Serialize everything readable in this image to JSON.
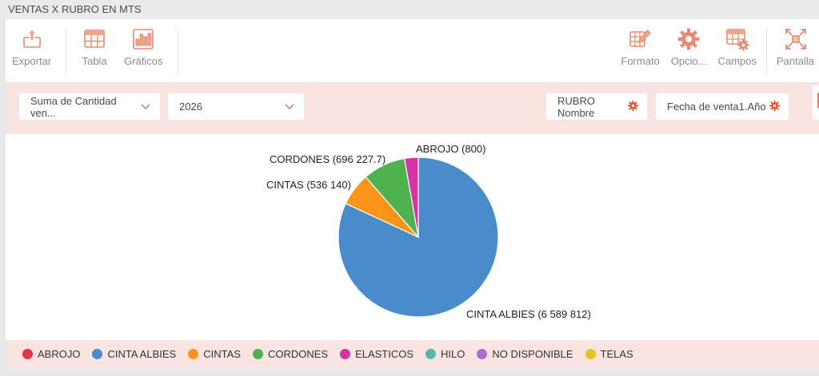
{
  "window": {
    "title": "VENTAS X RUBRO EN MTS"
  },
  "colors": {
    "toolbar_icon": "#e58a70",
    "toolbar_icon_fill": "#eda58d",
    "chip_gear": "#e8512c",
    "bar_pink": "#f9e4e1",
    "titlebar_gray": "#eaeaea"
  },
  "toolbar": {
    "left": [
      {
        "label": "Exportar",
        "icon": "export-icon"
      },
      {
        "label": "Tabla",
        "icon": "table-icon"
      },
      {
        "label": "Gráficos",
        "icon": "bar-chart-icon"
      }
    ],
    "right": [
      {
        "label": "Formato",
        "icon": "format-icon"
      },
      {
        "label": "Opcio...",
        "icon": "gear-icon"
      },
      {
        "label": "Campos",
        "icon": "fields-icon"
      },
      {
        "label": "Pantalla",
        "icon": "fullscreen-icon"
      }
    ]
  },
  "filters": {
    "measure_dropdown": {
      "value": "Suma de Cantidad ven..."
    },
    "year_dropdown": {
      "value": "2026"
    },
    "field_chips": [
      {
        "label": "RUBRO Nombre",
        "icon": "gear-icon"
      },
      {
        "label": "Fecha de venta1.Año",
        "icon": "gear-icon"
      }
    ],
    "mail_button_icon": "envelope-icon"
  },
  "chart_data": {
    "type": "pie",
    "title": "VENTAS X RUBRO EN MTS",
    "legend_position": "bottom",
    "slices": [
      {
        "name": "ABROJO",
        "value": 800,
        "color": "#e23345",
        "label": "ABROJO (800)"
      },
      {
        "name": "CINTA ALBIES",
        "value": 6589812,
        "color": "#4a8cc9",
        "label": "CINTA ALBIES (6 589 812)"
      },
      {
        "name": "CINTAS",
        "value": 536140,
        "color": "#fb9419",
        "label": "CINTAS (536 140)"
      },
      {
        "name": "CORDONES",
        "value": 696227.7,
        "color": "#50b24f",
        "label": "CORDONES (696 227.7)"
      },
      {
        "name": "ELASTICOS",
        "value": 223000,
        "color": "#d434a4",
        "label": "",
        "value_estimated_from_arc": true
      }
    ],
    "legend": [
      {
        "label": "ABROJO",
        "color": "#e23345"
      },
      {
        "label": "CINTA ALBIES",
        "color": "#4a8cc9"
      },
      {
        "label": "CINTAS",
        "color": "#fb9419"
      },
      {
        "label": "CORDONES",
        "color": "#50b24f"
      },
      {
        "label": "ELASTICOS",
        "color": "#d434a4"
      },
      {
        "label": "HILO",
        "color": "#55b8a8"
      },
      {
        "label": "NO DISPONIBLE",
        "color": "#b169ce"
      },
      {
        "label": "TELAS",
        "color": "#e6c31f"
      }
    ]
  }
}
